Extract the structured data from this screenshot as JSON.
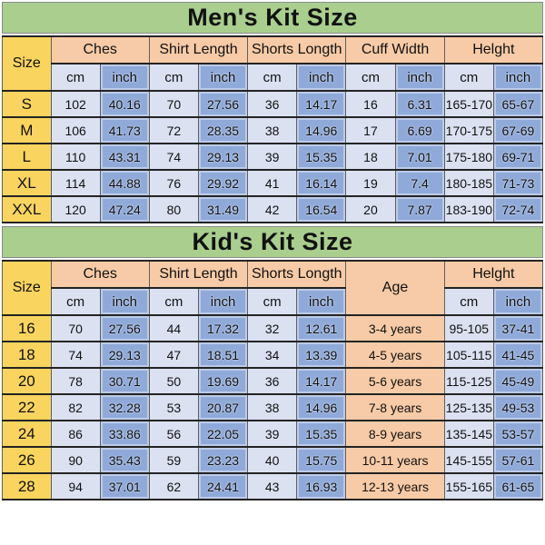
{
  "colors": {
    "title_band": "#A9CE8E",
    "size_col": "#F9D55F",
    "group_header": "#F7CBA7",
    "age_col": "#F7CBA7",
    "cm_col": "#DBE1F1",
    "inch_col": "#8FA9D9"
  },
  "chart_data": [
    {
      "type": "table",
      "title": "Men's Kit Size",
      "column_groups": [
        {
          "label": "Size"
        },
        {
          "label": "Ches",
          "sub": [
            "cm",
            "inch"
          ]
        },
        {
          "label": "Shirt Length",
          "sub": [
            "cm",
            "inch"
          ]
        },
        {
          "label": "Shorts Longth",
          "sub": [
            "cm",
            "inch"
          ]
        },
        {
          "label": "Cuff Width",
          "sub": [
            "cm",
            "inch"
          ]
        },
        {
          "label": "Helght",
          "sub": [
            "cm",
            "inch"
          ]
        }
      ],
      "rows": [
        [
          "S",
          "102",
          "40.16",
          "70",
          "27.56",
          "36",
          "14.17",
          "16",
          "6.31",
          "165-170",
          "65-67"
        ],
        [
          "M",
          "106",
          "41.73",
          "72",
          "28.35",
          "38",
          "14.96",
          "17",
          "6.69",
          "170-175",
          "67-69"
        ],
        [
          "L",
          "110",
          "43.31",
          "74",
          "29.13",
          "39",
          "15.35",
          "18",
          "7.01",
          "175-180",
          "69-71"
        ],
        [
          "XL",
          "114",
          "44.88",
          "76",
          "29.92",
          "41",
          "16.14",
          "19",
          "7.4",
          "180-185",
          "71-73"
        ],
        [
          "XXL",
          "120",
          "47.24",
          "80",
          "31.49",
          "42",
          "16.54",
          "20",
          "7.87",
          "183-190",
          "72-74"
        ]
      ]
    },
    {
      "type": "table",
      "title": "Kid's Kit Size",
      "column_groups": [
        {
          "label": "Size"
        },
        {
          "label": "Ches",
          "sub": [
            "cm",
            "inch"
          ]
        },
        {
          "label": "Shirt Length",
          "sub": [
            "cm",
            "inch"
          ]
        },
        {
          "label": "Shorts Longth",
          "sub": [
            "cm",
            "inch"
          ]
        },
        {
          "label": "Age",
          "wide": true
        },
        {
          "label": "Helght",
          "sub": [
            "cm",
            "inch"
          ]
        }
      ],
      "rows": [
        [
          "16",
          "70",
          "27.56",
          "44",
          "17.32",
          "32",
          "12.61",
          "3-4 years",
          "95-105",
          "37-41"
        ],
        [
          "18",
          "74",
          "29.13",
          "47",
          "18.51",
          "34",
          "13.39",
          "4-5 years",
          "105-115",
          "41-45"
        ],
        [
          "20",
          "78",
          "30.71",
          "50",
          "19.69",
          "36",
          "14.17",
          "5-6 years",
          "115-125",
          "45-49"
        ],
        [
          "22",
          "82",
          "32.28",
          "53",
          "20.87",
          "38",
          "14.96",
          "7-8 years",
          "125-135",
          "49-53"
        ],
        [
          "24",
          "86",
          "33.86",
          "56",
          "22.05",
          "39",
          "15.35",
          "8-9 years",
          "135-145",
          "53-57"
        ],
        [
          "26",
          "90",
          "35.43",
          "59",
          "23.23",
          "40",
          "15.75",
          "10-11 years",
          "145-155",
          "57-61"
        ],
        [
          "28",
          "94",
          "37.01",
          "62",
          "24.41",
          "43",
          "16.93",
          "12-13 years",
          "155-165",
          "61-65"
        ]
      ]
    }
  ]
}
